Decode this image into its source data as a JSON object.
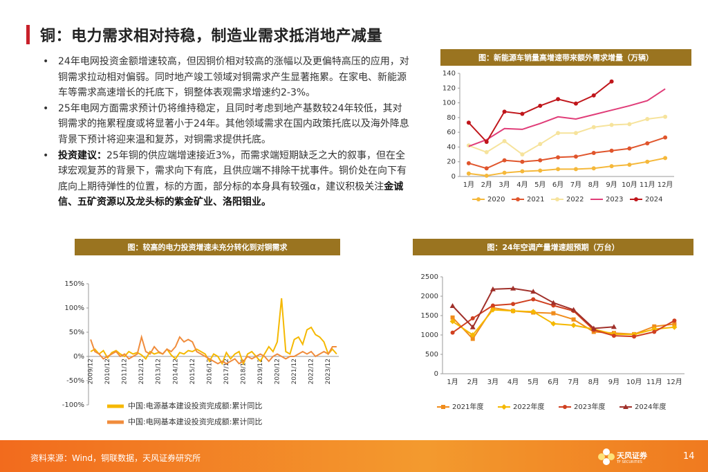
{
  "header": {
    "title": "铜：电力需求相对持稳，制造业需求抵消地产减量"
  },
  "bullets": [
    {
      "text": "24年电网投资金额增速较高，但因铜价相对较高的涨幅以及更偏特高压的应用，对铜需求拉动相对偏弱。同时地产竣工领域对铜需求产生显著拖累。在家电、新能源车等需求高速增长的托底下，铜整体表观需求增速约2-3%。"
    },
    {
      "text": "25年电网方面需求预计仍将维持稳定，且同时考虑到地产基数较24年较低，其对铜需求的拖累程度或将显著小于24年。其他领域需求在国内政策托底以及海外降息背景下预计将迎来温和复苏，对铜需求提供托底。"
    },
    {
      "lead": "投资建议：",
      "text": "25年铜的供应端增速接近3%，而需求端短期缺乏之大的叙事，但在全球宏观复苏的背景下，需求向下有底，且供应端不排除干扰事件。铜价处在向下有底向上期待弹性的位置，标的方面，部分标的本身具有较强α，建议积极关注",
      "emphasis": "金诚信、五矿资源以及龙头标的紫金矿业、洛阳钼业。"
    }
  ],
  "chart_data": [
    {
      "type": "line",
      "title": "图：新能源车销量高增速带来额外需求增量（万辆）",
      "categories": [
        "1月",
        "2月",
        "3月",
        "4月",
        "5月",
        "6月",
        "7月",
        "8月",
        "9月",
        "10月",
        "11月",
        "12月"
      ],
      "series": [
        {
          "name": "2020",
          "color": "#f5b83a",
          "marker": "circle",
          "values": [
            4,
            1,
            5,
            7,
            8,
            10,
            10,
            11,
            14,
            16,
            20,
            25
          ]
        },
        {
          "name": "2021",
          "color": "#e0552c",
          "marker": "circle",
          "values": [
            18,
            11,
            22,
            20,
            22,
            26,
            27,
            32,
            35,
            38,
            45,
            53
          ]
        },
        {
          "name": "2022",
          "color": "#f6e39c",
          "marker": "circle",
          "values": [
            42,
            33,
            48,
            30,
            44,
            59,
            59,
            67,
            70,
            71,
            78,
            81
          ]
        },
        {
          "name": "2023",
          "color": "#e03c78",
          "marker": "none",
          "values": [
            41,
            50,
            65,
            64,
            72,
            81,
            78,
            84,
            90,
            96,
            103,
            119
          ]
        },
        {
          "name": "2024",
          "color": "#c0161b",
          "marker": "circle",
          "values": [
            73,
            47,
            88,
            85,
            96,
            105,
            99,
            110,
            129,
            null,
            null,
            null
          ]
        }
      ],
      "ylim": [
        0,
        140
      ],
      "yticks": [
        0,
        20,
        40,
        60,
        80,
        100,
        120,
        140
      ],
      "grid": false,
      "legend": "bottom"
    },
    {
      "type": "line",
      "title": "图：较高的电力投资增速未充分转化到对铜需求",
      "categories": [
        "2009/12",
        null,
        null,
        null,
        "2010/12",
        null,
        null,
        null,
        "2011/12",
        null,
        null,
        null,
        "2012/12",
        null,
        null,
        null,
        "2013/12",
        null,
        null,
        null,
        "2014/12",
        null,
        null,
        null,
        "2015/12",
        null,
        null,
        null,
        "2016/12",
        null,
        null,
        null,
        "2017/12",
        null,
        null,
        null,
        "2018/12",
        null,
        null,
        null,
        "2019/12",
        null,
        null,
        null,
        "2020/12",
        null,
        null,
        null,
        "2021/12",
        null,
        null,
        null,
        "2022/12",
        null,
        null,
        null,
        "2023/12",
        null,
        null
      ],
      "series": [
        {
          "name": "中国:电源基本建设投资完成额:累计同比",
          "color": "#f5b800",
          "marker": "none",
          "values": [
            10,
            15,
            5,
            12,
            -3,
            8,
            12,
            5,
            0,
            10,
            5,
            8,
            3,
            -5,
            10,
            5,
            8,
            5,
            15,
            3,
            -5,
            8,
            5,
            12,
            10,
            15,
            10,
            5,
            -10,
            5,
            0,
            -15,
            8,
            -5,
            5,
            10,
            -15,
            5,
            10,
            0,
            -10,
            5,
            20,
            10,
            30,
            120,
            10,
            5,
            35,
            40,
            25,
            55,
            60,
            45,
            40,
            30,
            5,
            15,
            5
          ]
        },
        {
          "name": "中国:电网基本建设投资完成额:累计同比",
          "color": "#f08c3c",
          "marker": "none",
          "values": [
            35,
            10,
            5,
            -5,
            0,
            5,
            10,
            0,
            5,
            -5,
            0,
            5,
            40,
            10,
            5,
            20,
            10,
            5,
            15,
            10,
            20,
            40,
            30,
            35,
            30,
            10,
            5,
            0,
            -5,
            -10,
            -15,
            -10,
            -15,
            -10,
            -5,
            -15,
            -10,
            0,
            -5,
            0,
            5,
            0,
            -10,
            0,
            5,
            0,
            -5,
            0,
            0,
            5,
            10,
            5,
            10,
            0,
            5,
            10,
            5,
            20,
            20
          ]
        }
      ],
      "ylim": [
        -100,
        150
      ],
      "yticks": [
        {
          "value": -100,
          "label": "-100%"
        },
        {
          "value": -50,
          "label": "-50%"
        },
        {
          "value": 0,
          "label": "0%"
        },
        {
          "value": 50,
          "label": "50%"
        },
        {
          "value": 100,
          "label": "100%"
        },
        {
          "value": 150,
          "label": "150%"
        }
      ],
      "grid": false,
      "legend": "bottom"
    },
    {
      "type": "line",
      "title": "图：24年空调产量增速超预期（万台）",
      "categories": [
        "1月",
        "2月",
        "3月",
        "4月",
        "5月",
        "6月",
        "7月",
        "8月",
        "9月",
        "10月",
        "11月",
        "12月"
      ],
      "series": [
        {
          "name": "2021年度",
          "color": "#f08c1c",
          "marker": "square",
          "values": [
            1450,
            900,
            1700,
            1620,
            1580,
            1560,
            1400,
            1080,
            1050,
            1020,
            1220,
            1280
          ]
        },
        {
          "name": "2022年度",
          "color": "#f5b800",
          "marker": "diamond",
          "values": [
            1350,
            1000,
            1650,
            1620,
            1600,
            1290,
            1250,
            1150,
            1020,
            1010,
            1150,
            1200
          ]
        },
        {
          "name": "2023年度",
          "color": "#d04020",
          "marker": "circle",
          "values": [
            1060,
            1430,
            1760,
            1800,
            1920,
            1760,
            1620,
            1130,
            980,
            960,
            1080,
            1370
          ]
        },
        {
          "name": "2024年度",
          "color": "#a0302a",
          "marker": "triangle",
          "values": [
            1750,
            1200,
            2180,
            2200,
            2120,
            1830,
            1650,
            1170,
            1210,
            null,
            null,
            null
          ]
        }
      ],
      "ylim": [
        0,
        2500
      ],
      "yticks": [
        0,
        500,
        1000,
        1500,
        2000,
        2500
      ],
      "grid": false,
      "legend": "bottom"
    }
  ],
  "footer": {
    "source": "资料来源：Wind，铜联数据，天风证券研究所",
    "logo": "天风证券",
    "logo_sub": "TF SECURITIES",
    "page": "14"
  }
}
